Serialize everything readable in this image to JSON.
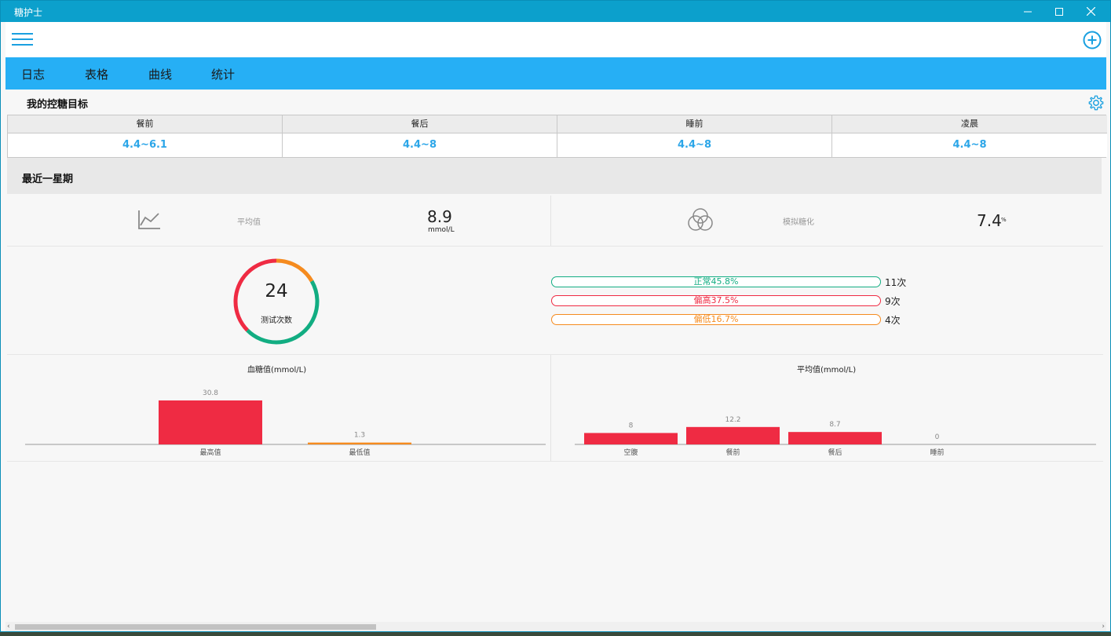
{
  "window": {
    "title": "糖护士"
  },
  "tabs": [
    "日志",
    "表格",
    "曲线",
    "统计"
  ],
  "goals": {
    "title": "我的控糖目标",
    "columns": [
      {
        "label": "餐前",
        "value": "4.4~6.1"
      },
      {
        "label": "餐后",
        "value": "4.4~8"
      },
      {
        "label": "睡前",
        "value": "4.4~8"
      },
      {
        "label": "凌晨",
        "value": "4.4~8"
      }
    ]
  },
  "week": {
    "title": "最近一星期",
    "average": {
      "label": "平均值",
      "value": "8.9",
      "unit": "mmol/L",
      "icon": "line-chart-icon"
    },
    "hba1c": {
      "label": "模拟糖化",
      "value": "7.4",
      "unit": "%",
      "icon": "venn-circles-icon"
    },
    "tests": {
      "count": "24",
      "label": "测试次数",
      "segments": [
        {
          "name": "正常",
          "fraction": 0.458,
          "color": "#12ad82"
        },
        {
          "name": "偏高",
          "fraction": 0.375,
          "color": "#ef2b43"
        },
        {
          "name": "偏低",
          "fraction": 0.167,
          "color": "#f58b1f"
        }
      ]
    },
    "breakdown": [
      {
        "text": "正常45.8%",
        "count": "11次",
        "color": "#12ad82"
      },
      {
        "text": "偏高37.5%",
        "count": "9次",
        "color": "#ef2b43"
      },
      {
        "text": "偏低16.7%",
        "count": "4次",
        "color": "#f58b1f"
      }
    ]
  },
  "chart_data": [
    {
      "type": "bar",
      "title": "血糖值(mmol/L)",
      "categories": [
        "最高值",
        "最低值"
      ],
      "values": [
        30.8,
        1.3
      ],
      "colors": [
        "#ef2b43",
        "#f58b1f"
      ],
      "ylim": [
        0,
        30.8
      ]
    },
    {
      "type": "bar",
      "title": "平均值(mmol/L)",
      "categories": [
        "空腹",
        "餐前",
        "餐后",
        "睡前"
      ],
      "values": [
        8,
        12.2,
        8.7,
        0
      ],
      "colors": [
        "#ef2b43",
        "#ef2b43",
        "#ef2b43",
        "#ef2b43"
      ],
      "ylim": [
        0,
        30.8
      ]
    }
  ]
}
